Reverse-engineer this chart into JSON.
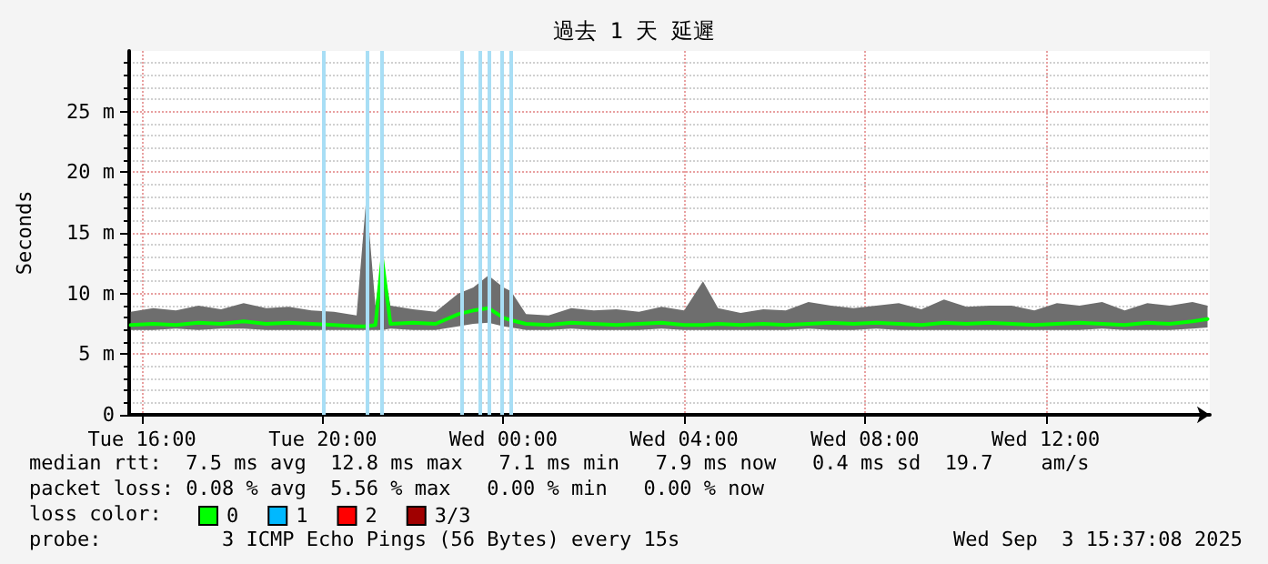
{
  "chart_data": {
    "type": "line",
    "title": "過去 1 天 延遲",
    "ylabel": "Seconds",
    "legend_title": "loss color:",
    "legend": "bottom left",
    "grid": true,
    "marker": "none",
    "line_style": "solid",
    "xlim": [
      "2025-09-02T15:43",
      "2025-09-03T15:38"
    ],
    "xticks": [
      {
        "value": "2025-09-02T16:00",
        "label": "Tue 16:00"
      },
      {
        "value": "2025-09-02T20:00",
        "label": "Tue 20:00"
      },
      {
        "value": "2025-09-03T00:00",
        "label": "Wed 00:00"
      },
      {
        "value": "2025-09-03T04:00",
        "label": "Wed 04:00"
      },
      {
        "value": "2025-09-03T08:00",
        "label": "Wed 08:00"
      },
      {
        "value": "2025-09-03T12:00",
        "label": "Wed 12:00"
      }
    ],
    "ylim": [
      0,
      30
    ],
    "yticks": [
      {
        "value": 0,
        "label": "0"
      },
      {
        "value": 5,
        "label": "5 m"
      },
      {
        "value": 10,
        "label": "10 m"
      },
      {
        "value": 15,
        "label": "15 m"
      },
      {
        "value": 20,
        "label": "20 m"
      },
      {
        "value": 25,
        "label": "25 m"
      }
    ],
    "x": [
      "2025-09-02T15:45",
      "2025-09-02T16:15",
      "2025-09-02T16:45",
      "2025-09-02T17:15",
      "2025-09-02T17:45",
      "2025-09-02T18:15",
      "2025-09-02T18:45",
      "2025-09-02T19:15",
      "2025-09-02T19:45",
      "2025-09-02T20:15",
      "2025-09-02T20:45",
      "2025-09-02T20:58",
      "2025-09-02T21:10",
      "2025-09-02T21:19",
      "2025-09-02T21:30",
      "2025-09-02T22:00",
      "2025-09-02T22:30",
      "2025-09-02T23:00",
      "2025-09-02T23:20",
      "2025-09-02T23:40",
      "2025-09-03T00:00",
      "2025-09-03T00:10",
      "2025-09-03T00:30",
      "2025-09-03T01:00",
      "2025-09-03T01:30",
      "2025-09-03T02:00",
      "2025-09-03T02:30",
      "2025-09-03T03:00",
      "2025-09-03T03:30",
      "2025-09-03T04:00",
      "2025-09-03T04:25",
      "2025-09-03T04:45",
      "2025-09-03T05:15",
      "2025-09-03T05:45",
      "2025-09-03T06:15",
      "2025-09-03T06:45",
      "2025-09-03T07:15",
      "2025-09-03T07:45",
      "2025-09-03T08:15",
      "2025-09-03T08:45",
      "2025-09-03T09:15",
      "2025-09-03T09:45",
      "2025-09-03T10:15",
      "2025-09-03T10:45",
      "2025-09-03T11:15",
      "2025-09-03T11:45",
      "2025-09-03T12:15",
      "2025-09-03T12:45",
      "2025-09-03T13:15",
      "2025-09-03T13:45",
      "2025-09-03T14:15",
      "2025-09-03T14:45",
      "2025-09-03T15:15",
      "2025-09-03T15:35"
    ],
    "series": [
      {
        "name": "0",
        "color": "#00ff00",
        "values": [
          7.4,
          7.5,
          7.4,
          7.6,
          7.5,
          7.7,
          7.5,
          7.6,
          7.5,
          7.4,
          7.3,
          7.3,
          7.4,
          12.8,
          7.5,
          7.6,
          7.5,
          8.3,
          8.6,
          8.8,
          8.0,
          7.8,
          7.5,
          7.4,
          7.6,
          7.5,
          7.4,
          7.5,
          7.6,
          7.4,
          7.4,
          7.5,
          7.4,
          7.5,
          7.4,
          7.5,
          7.6,
          7.5,
          7.6,
          7.5,
          7.4,
          7.6,
          7.5,
          7.6,
          7.5,
          7.4,
          7.5,
          7.6,
          7.5,
          7.4,
          7.6,
          7.5,
          7.7,
          7.9
        ],
        "lower": [
          7.0,
          7.0,
          7.1,
          7.0,
          7.1,
          7.1,
          7.0,
          7.0,
          7.0,
          7.0,
          7.0,
          7.0,
          7.0,
          7.0,
          7.1,
          7.0,
          7.0,
          7.3,
          7.5,
          7.6,
          7.3,
          7.2,
          7.0,
          7.0,
          7.1,
          7.0,
          7.0,
          7.0,
          7.1,
          7.0,
          7.0,
          7.0,
          7.0,
          7.0,
          7.0,
          7.1,
          7.0,
          7.0,
          7.1,
          7.0,
          7.0,
          7.0,
          7.0,
          7.0,
          7.0,
          7.0,
          7.0,
          7.0,
          7.1,
          7.0,
          7.0,
          7.0,
          7.1,
          7.2
        ],
        "upper": [
          8.5,
          8.8,
          8.6,
          9.0,
          8.7,
          9.2,
          8.8,
          8.9,
          8.6,
          8.5,
          8.2,
          18.0,
          9.0,
          12.8,
          9.0,
          8.7,
          8.5,
          10.0,
          10.5,
          11.5,
          10.5,
          10.2,
          8.3,
          8.2,
          8.8,
          8.6,
          8.7,
          8.5,
          8.9,
          8.6,
          11.0,
          8.8,
          8.4,
          8.7,
          8.6,
          9.3,
          9.0,
          8.8,
          9.0,
          9.2,
          8.7,
          9.5,
          8.9,
          9.0,
          9.0,
          8.6,
          9.2,
          9.0,
          9.3,
          8.6,
          9.2,
          9.0,
          9.3,
          9.0
        ]
      },
      {
        "name": "1",
        "color": "#00b8ff",
        "values": [
          null,
          null,
          null,
          null,
          null,
          null,
          null,
          null,
          null,
          null,
          null,
          null,
          null,
          null,
          null,
          null,
          null,
          null,
          null,
          null,
          null,
          null,
          null,
          null,
          null,
          null,
          null,
          null,
          null,
          null,
          null,
          null,
          null,
          null,
          null,
          null,
          null,
          null,
          null,
          null,
          null,
          null,
          null,
          null,
          null,
          null,
          null,
          null,
          null,
          null,
          null,
          null,
          null,
          null
        ]
      },
      {
        "name": "2",
        "color": "#ff0000",
        "values": [
          null,
          null,
          null,
          null,
          null,
          null,
          null,
          null,
          null,
          null,
          null,
          null,
          null,
          null,
          null,
          null,
          null,
          null,
          null,
          null,
          null,
          null,
          null,
          null,
          null,
          null,
          null,
          null,
          null,
          null,
          null,
          null,
          null,
          null,
          null,
          null,
          null,
          null,
          null,
          null,
          null,
          null,
          null,
          null,
          null,
          null,
          null,
          null,
          null,
          null,
          null,
          null,
          null,
          null
        ]
      },
      {
        "name": "3/3",
        "color": "#a00000",
        "values": [
          null,
          null,
          null,
          null,
          null,
          null,
          null,
          null,
          null,
          null,
          null,
          null,
          null,
          null,
          null,
          null,
          null,
          null,
          null,
          null,
          null,
          null,
          null,
          null,
          null,
          null,
          null,
          null,
          null,
          null,
          null,
          null,
          null,
          null,
          null,
          null,
          null,
          null,
          null,
          null,
          null,
          null,
          null,
          null,
          null,
          null,
          null,
          null,
          null,
          null,
          null,
          null,
          null,
          null
        ]
      }
    ],
    "ref_lines": [
      {
        "axis": "x",
        "value": "2025-09-02T20:02",
        "color": "#a8def5"
      },
      {
        "axis": "x",
        "value": "2025-09-02T20:58",
        "color": "#a8def5"
      },
      {
        "axis": "x",
        "value": "2025-09-02T21:19",
        "color": "#a8def5"
      },
      {
        "axis": "x",
        "value": "2025-09-02T23:05",
        "color": "#a8def5"
      },
      {
        "axis": "x",
        "value": "2025-09-02T23:29",
        "color": "#a8def5"
      },
      {
        "axis": "x",
        "value": "2025-09-02T23:41",
        "color": "#a8def5"
      },
      {
        "axis": "x",
        "value": "2025-09-02T23:58",
        "color": "#a8def5"
      },
      {
        "axis": "x",
        "value": "2025-09-03T00:10",
        "color": "#a8def5"
      }
    ],
    "annotations": [
      "median rtt:  7.5 ms avg  12.8 ms max   7.1 ms min   7.9 ms now   0.4 ms sd  19.7    am/s",
      "packet loss: 0.08 % avg  5.56 % max   0.00 % min   0.00 % now",
      "probe:          3 ICMP Echo Pings (56 Bytes) every 15s",
      "Wed Sep  3 15:37:08 2025"
    ]
  }
}
